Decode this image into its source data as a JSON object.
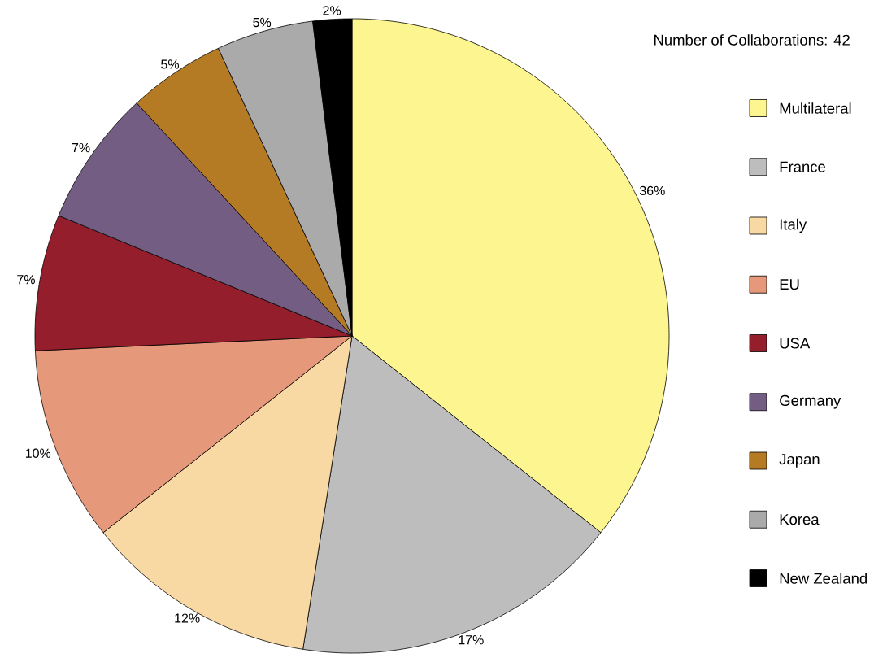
{
  "chart_data": {
    "type": "pie",
    "title": "Number of Collaborations: 42",
    "categories": [
      "Multilateral",
      "France",
      "Italy",
      "EU",
      "USA",
      "Germany",
      "Japan",
      "Korea",
      "New Zealand"
    ],
    "values": [
      36,
      17,
      12,
      10,
      7,
      7,
      5,
      5,
      2
    ],
    "value_labels": [
      "36%",
      "17%",
      "12%",
      "10%",
      "7%",
      "7%",
      "5%",
      "5%",
      "2%"
    ],
    "colors": [
      "#fdf58f",
      "#bdbdbd",
      "#f9d9a3",
      "#e5987a",
      "#951e2c",
      "#735d82",
      "#b57a24",
      "#aaaaaa",
      "#000000"
    ],
    "legend": "right"
  }
}
